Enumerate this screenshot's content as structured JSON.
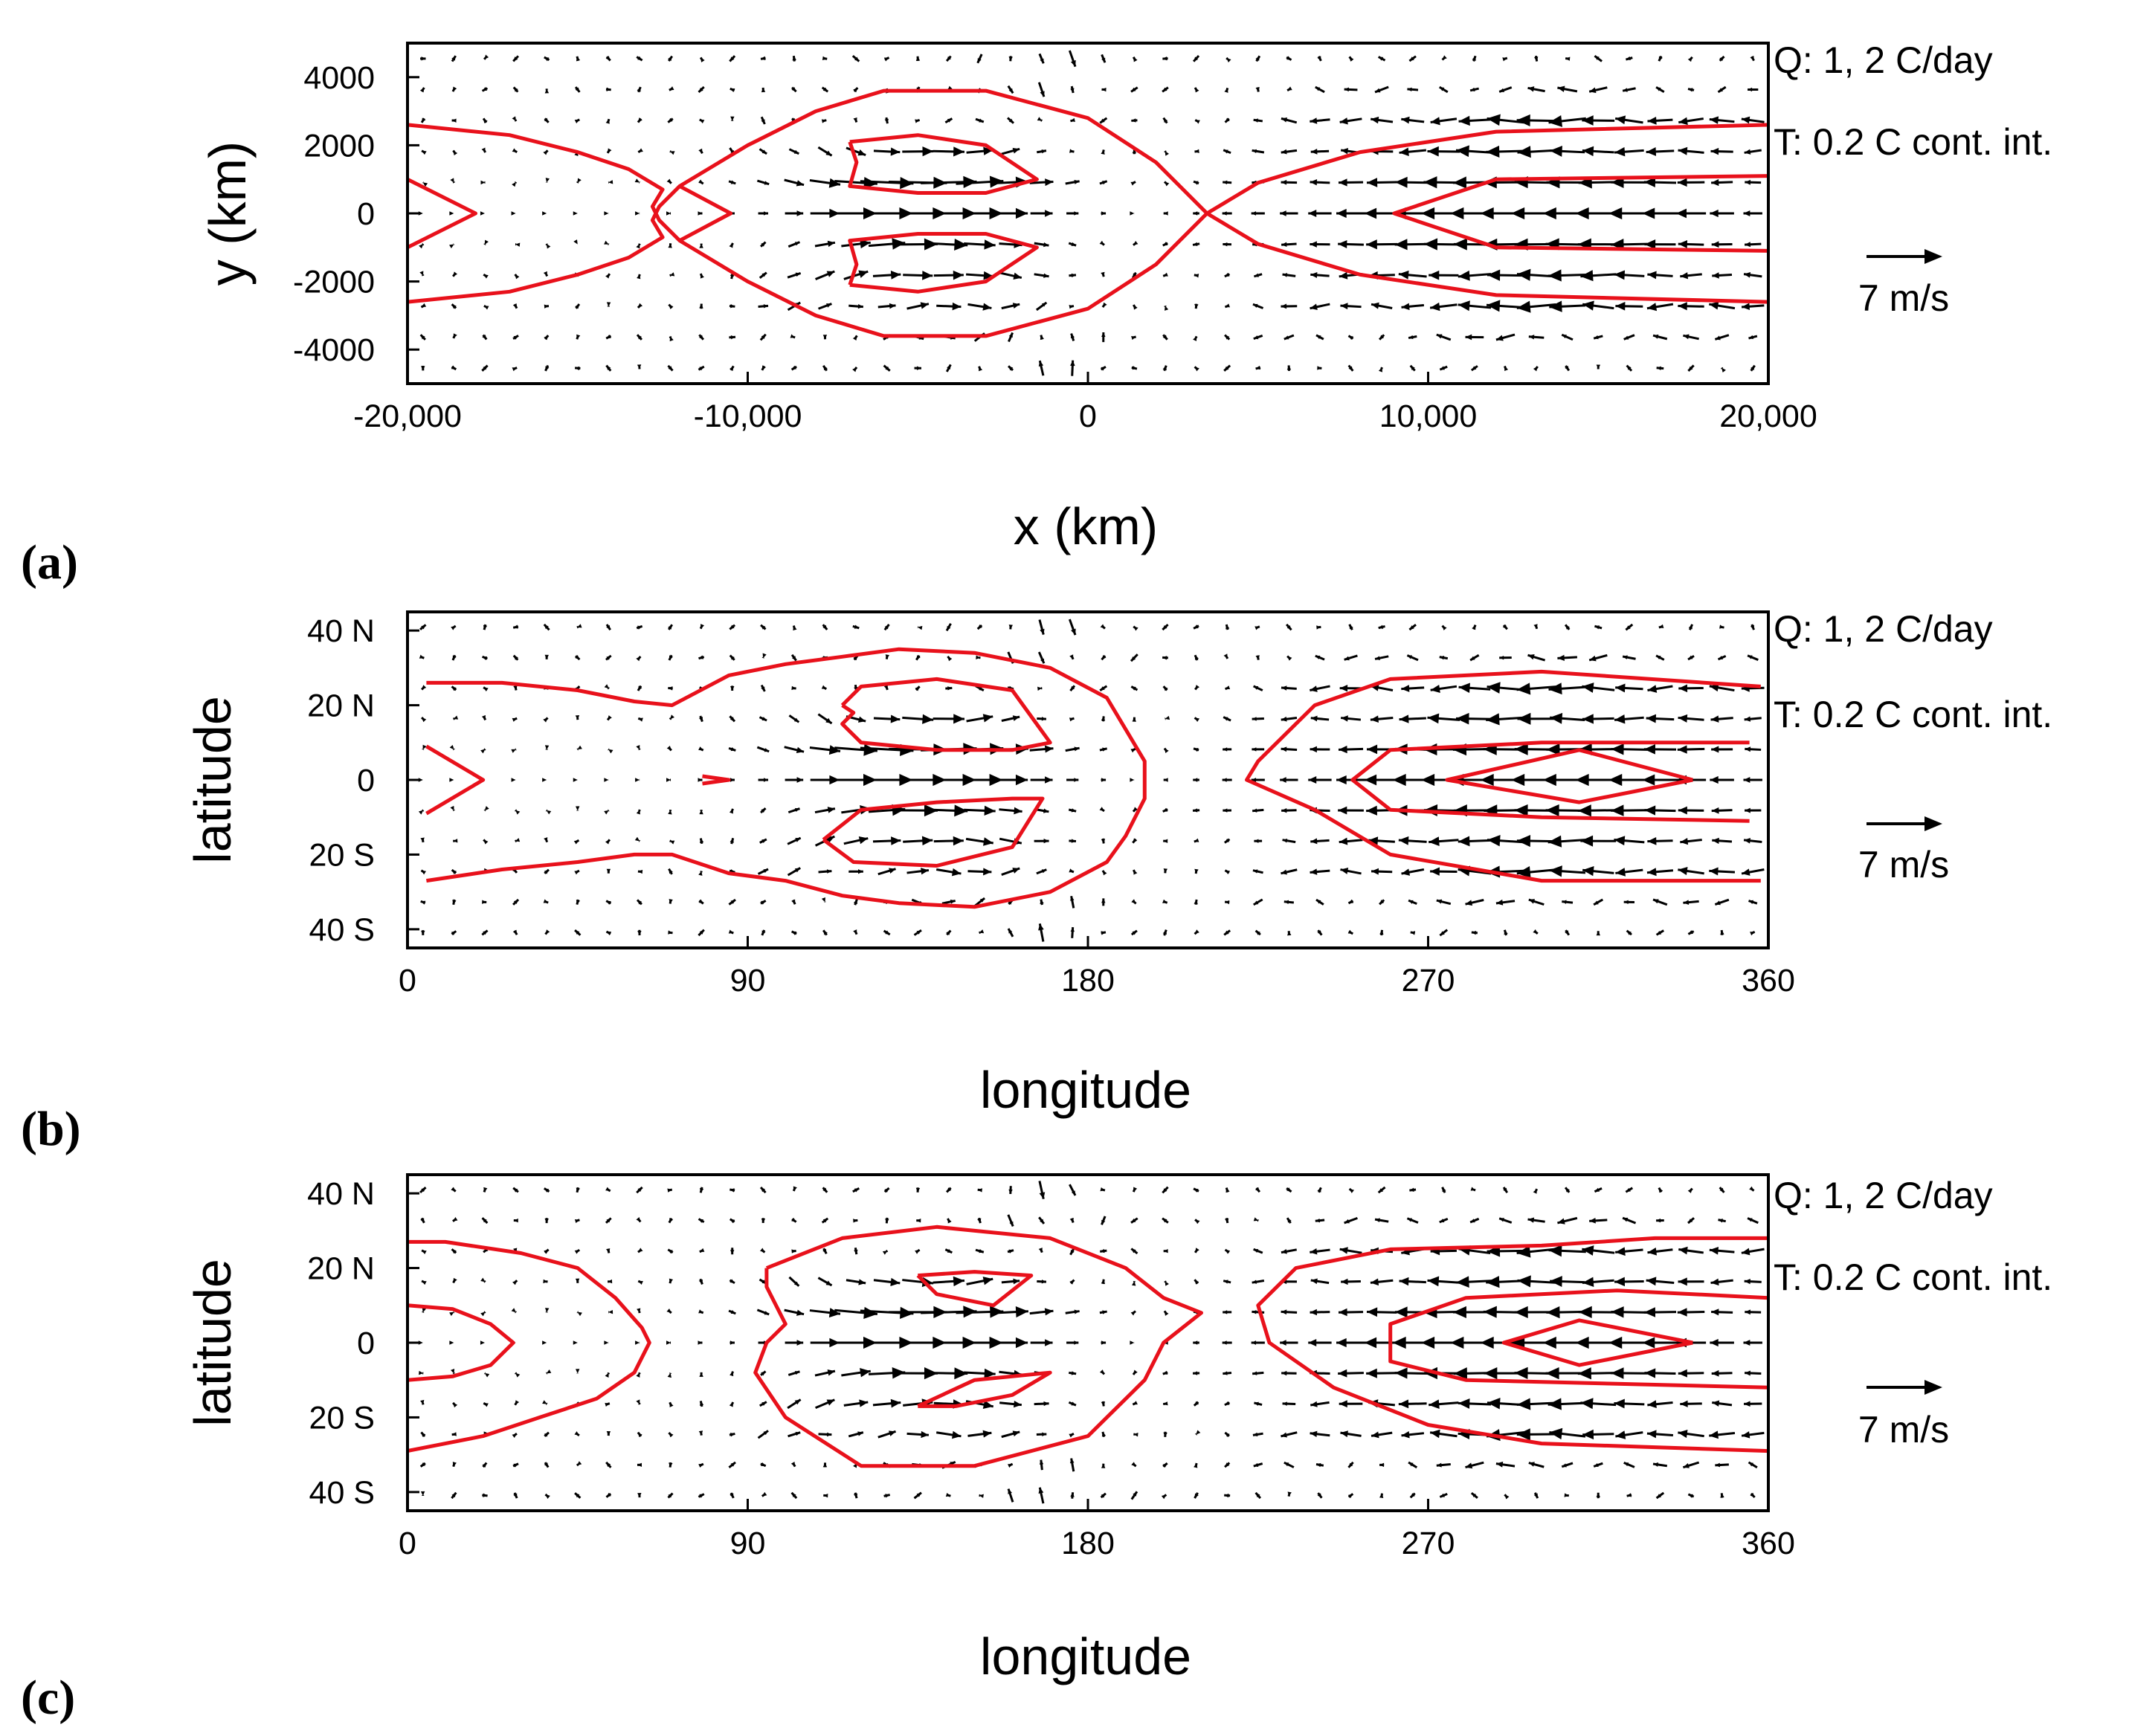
{
  "colors": {
    "contour": "#e8111b",
    "vector": "#000000",
    "frame": "#000000"
  },
  "chart_data": [
    {
      "type": "vector-contour",
      "panel_label": "(a)",
      "xlabel": "x (km)",
      "ylabel": "y (km)",
      "xlim": [
        -20000,
        20000
      ],
      "ylim": [
        -5000,
        5000
      ],
      "xticks": [
        -20000,
        -10000,
        0,
        10000,
        20000
      ],
      "xtick_labels": [
        "-20,000",
        "-10,000",
        "0",
        "10,000",
        "20,000"
      ],
      "yticks": [
        4000,
        2000,
        0,
        -2000,
        -4000
      ],
      "ytick_labels": [
        "4000",
        "2000",
        "0",
        "-2000",
        "-4000"
      ],
      "annotation_q": "Q: 1, 2 C/day",
      "annotation_t": "T: 0.2 C cont. int.",
      "reference_vector": "7 m/s",
      "contours": [
        {
          "level": "1 C/day",
          "x": [
            -20000,
            -17000,
            -15000,
            -13500,
            -12500,
            -12800,
            -12600,
            -12000,
            -10000,
            -8000,
            -6000,
            -3000,
            0,
            2000,
            3500,
            3500,
            2000,
            0,
            -3000,
            -6000,
            -8000,
            -10000,
            -12000,
            -12600,
            -12800,
            -12500,
            -13500,
            -15000,
            -17000,
            -20000
          ],
          "y": [
            2600,
            2300,
            1800,
            1300,
            700,
            200,
            -200,
            -800,
            -2000,
            -3000,
            -3600,
            -3600,
            -2800,
            -1500,
            0,
            0,
            1500,
            2800,
            3600,
            3600,
            3000,
            2000,
            800,
            200,
            -200,
            -700,
            -1300,
            -1800,
            -2300,
            -2600
          ]
        },
        {
          "level": "1 C/day",
          "x": [
            20000,
            12000,
            8000,
            5000,
            3500,
            5000,
            8000,
            12000,
            20000
          ],
          "y": [
            2600,
            2400,
            1800,
            900,
            0,
            -900,
            -1800,
            -2400,
            -2600
          ]
        },
        {
          "level": "2 C/day",
          "x": [
            -7000,
            -5000,
            -3000,
            -1500,
            -3000,
            -5000,
            -7000,
            -6800,
            -7000
          ],
          "y": [
            2100,
            2300,
            2000,
            1000,
            600,
            600,
            800,
            1500,
            2100
          ]
        },
        {
          "level": "2 C/day",
          "x": [
            -7000,
            -5000,
            -3000,
            -1500,
            -3000,
            -5000,
            -7000,
            -6800,
            -7000
          ],
          "y": [
            -2100,
            -2300,
            -2000,
            -1000,
            -600,
            -600,
            -800,
            -1500,
            -2100
          ]
        },
        {
          "level": "2 C/day",
          "x": [
            20000,
            12000,
            9000,
            12000,
            20000
          ],
          "y": [
            1100,
            1000,
            0,
            -1000,
            -1100
          ]
        },
        {
          "level": "2 C/day",
          "x": [
            -20000,
            -18000,
            -20000
          ],
          "y": [
            1000,
            0,
            -1000
          ]
        },
        {
          "level": "1 C/day",
          "x": [
            -12000,
            -10500,
            -12000
          ],
          "y": [
            800,
            0,
            -800
          ]
        }
      ]
    },
    {
      "type": "vector-contour",
      "panel_label": "(b)",
      "xlabel": "longitude",
      "ylabel": "latitude",
      "xlim": [
        0,
        360
      ],
      "ylim": [
        -45,
        45
      ],
      "xticks": [
        0,
        90,
        180,
        270,
        360
      ],
      "xtick_labels": [
        "0",
        "90",
        "180",
        "270",
        "360"
      ],
      "yticks": [
        40,
        20,
        0,
        -20,
        -40
      ],
      "ytick_labels": [
        "40 N",
        "20 N",
        "0",
        "20 S",
        "40 S"
      ],
      "annotation_q": "Q: 1, 2 C/day",
      "annotation_t": "T: 0.2 C cont. int.",
      "reference_vector": "7 m/s",
      "contours": [
        {
          "level": "1 C/day",
          "x": [
            5,
            25,
            45,
            60,
            70,
            85,
            100,
            115,
            130,
            150,
            170,
            185,
            195,
            195,
            190,
            185,
            170,
            150,
            130,
            115,
            100,
            85,
            70,
            60,
            45,
            25,
            5
          ],
          "y": [
            26,
            26,
            24,
            21,
            20,
            28,
            31,
            33,
            35,
            34,
            30,
            22,
            5,
            -5,
            -15,
            -22,
            -30,
            -34,
            -33,
            -31,
            -27,
            -25,
            -20,
            -20,
            -22,
            -24,
            -27
          ]
        },
        {
          "level": "2 C/day",
          "x": [
            115,
            120,
            140,
            160,
            170,
            160,
            140,
            120,
            115,
            118,
            115
          ],
          "y": [
            20,
            25,
            27,
            24,
            10,
            8,
            8,
            10,
            15,
            18,
            20
          ]
        },
        {
          "level": "2 C/day",
          "x": [
            110,
            118,
            140,
            160,
            168,
            160,
            140,
            120,
            110
          ],
          "y": [
            -16,
            -22,
            -23,
            -18,
            -5,
            -5,
            -6,
            -8,
            -16
          ]
        },
        {
          "level": "1 C/day",
          "x": [
            358,
            300,
            260,
            240,
            225,
            222,
            240,
            260,
            300,
            358
          ],
          "y": [
            25,
            29,
            27,
            20,
            5,
            0,
            -8,
            -20,
            -27,
            -27
          ]
        },
        {
          "level": "2 C/day",
          "x": [
            355,
            300,
            260,
            250,
            260,
            300,
            355
          ],
          "y": [
            10,
            10,
            8,
            0,
            -8,
            -10,
            -11
          ]
        },
        {
          "level": "2 C/day",
          "x": [
            340,
            310,
            275,
            310,
            340
          ],
          "y": [
            0,
            8,
            0,
            -6,
            0
          ]
        },
        {
          "level": "2 C/day",
          "x": [
            5,
            20,
            5
          ],
          "y": [
            9,
            0,
            -9
          ]
        },
        {
          "level": "1 C/day",
          "x": [
            78,
            85,
            78
          ],
          "y": [
            1,
            0,
            -1
          ]
        }
      ]
    },
    {
      "type": "vector-contour",
      "panel_label": "(c)",
      "xlabel": "longitude",
      "ylabel": "latitude",
      "xlim": [
        0,
        360
      ],
      "ylim": [
        -45,
        45
      ],
      "xticks": [
        0,
        90,
        180,
        270,
        360
      ],
      "xtick_labels": [
        "0",
        "90",
        "180",
        "270",
        "360"
      ],
      "yticks": [
        40,
        20,
        0,
        -20,
        -40
      ],
      "ytick_labels": [
        "40 N",
        "20 N",
        "0",
        "20 S",
        "40 S"
      ],
      "annotation_q": "Q: 1, 2 C/day",
      "annotation_t": "T: 0.2 C cont. int.",
      "reference_vector": "7 m/s",
      "contours": [
        {
          "level": "1 C/day",
          "x": [
            0,
            10,
            30,
            45,
            55,
            62,
            64,
            60,
            50,
            35,
            20,
            5,
            0
          ],
          "y": [
            27,
            27,
            24,
            20,
            12,
            4,
            0,
            -8,
            -15,
            -20,
            -25,
            -28,
            -29
          ]
        },
        {
          "level": "2 C/day",
          "x": [
            0,
            12,
            22,
            28,
            22,
            12,
            0
          ],
          "y": [
            10,
            9,
            5,
            0,
            -6,
            -9,
            -10
          ]
        },
        {
          "level": "1 C/day",
          "x": [
            95,
            115,
            140,
            170,
            190,
            200,
            210,
            200,
            195,
            180,
            150,
            120,
            100,
            92,
            95,
            100,
            95,
            95
          ],
          "y": [
            20,
            28,
            31,
            28,
            20,
            12,
            8,
            0,
            -10,
            -25,
            -33,
            -33,
            -20,
            -8,
            0,
            5,
            15,
            20
          ]
        },
        {
          "level": "2 C/day",
          "x": [
            135,
            150,
            165,
            155,
            140,
            135
          ],
          "y": [
            18,
            19,
            18,
            10,
            13,
            18
          ]
        },
        {
          "level": "2 C/day",
          "x": [
            135,
            150,
            170,
            160,
            145,
            135
          ],
          "y": [
            -17,
            -10,
            -8,
            -14,
            -17,
            -17
          ]
        },
        {
          "level": "1 C/day",
          "x": [
            360,
            330,
            300,
            260,
            235,
            225,
            228,
            245,
            270,
            300,
            330,
            360
          ],
          "y": [
            28,
            28,
            26,
            25,
            20,
            10,
            0,
            -12,
            -22,
            -27,
            -28,
            -29
          ]
        },
        {
          "level": "2 C/day",
          "x": [
            360,
            320,
            280,
            260,
            260,
            280,
            320,
            360
          ],
          "y": [
            12,
            14,
            12,
            5,
            -5,
            -10,
            -11,
            -12
          ]
        },
        {
          "level": "2 C/day",
          "x": [
            340,
            310,
            290,
            310,
            340
          ],
          "y": [
            0,
            6,
            0,
            -6,
            0
          ]
        }
      ]
    }
  ]
}
